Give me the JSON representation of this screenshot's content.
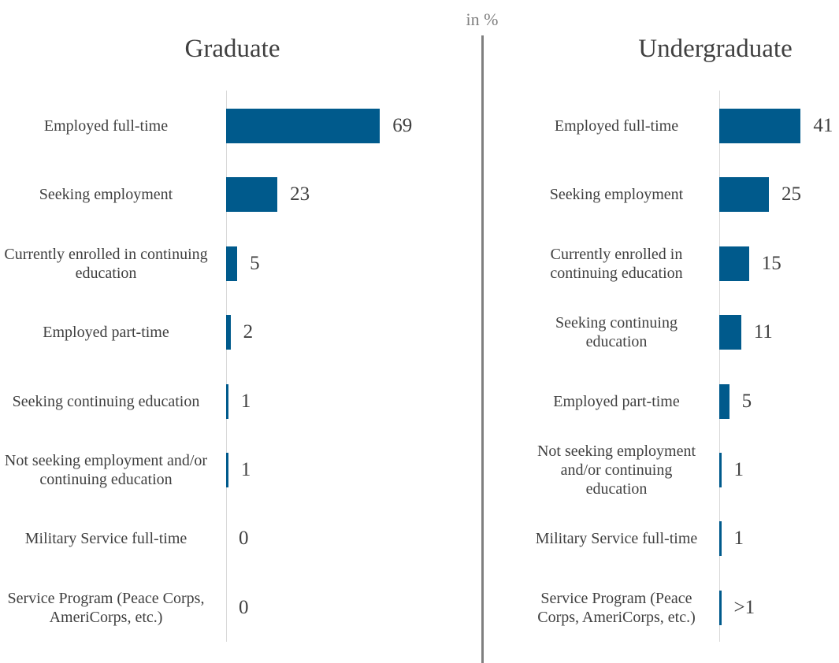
{
  "caption": "in %",
  "chart_data": [
    {
      "type": "bar",
      "orientation": "horizontal",
      "title": "Graduate",
      "categories": [
        "Employed full-time",
        "Seeking employment",
        "Currently enrolled in continuing education",
        "Employed part-time",
        "Seeking continuing education",
        "Not seeking employment and/or continuing education",
        "Military Service full-time",
        "Service Program (Peace Corps, AmeriCorps, etc.)"
      ],
      "values": [
        69,
        23,
        5,
        2,
        1,
        1,
        0,
        0
      ],
      "color": "#005a8c",
      "xlim": [
        0,
        100
      ]
    },
    {
      "type": "bar",
      "orientation": "horizontal",
      "title": "Undergraduate",
      "categories": [
        "Employed full-time",
        "Seeking employment",
        "Currently enrolled in continuing education",
        "Seeking continuing education",
        "Employed part-time",
        "Not seeking employment and/or continuing education",
        "Military Service full-time",
        "Service Program (Peace Corps, AmeriCorps, etc.)"
      ],
      "values": [
        41,
        25,
        15,
        11,
        5,
        1,
        1,
        1
      ],
      "value_labels": [
        "41",
        "25",
        "15",
        "11",
        "5",
        "1",
        "1",
        ">1"
      ],
      "color": "#005a8c",
      "xlim": [
        0,
        100
      ]
    }
  ]
}
